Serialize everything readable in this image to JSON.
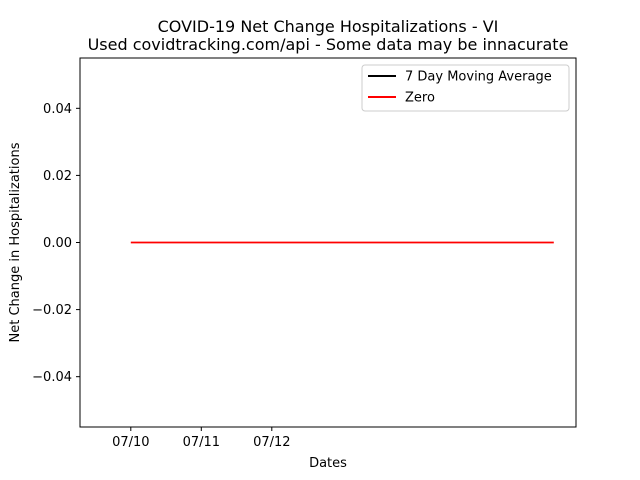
{
  "chart_data": {
    "type": "line",
    "title": "COVID-19 Net Change Hospitalizations - VI",
    "subtitle": "Used covidtracking.com/api - Some data may be innacurate",
    "xlabel": "Dates",
    "ylabel": "Net Change in Hospitalizations",
    "x_ticks": [
      "07/10",
      "07/11",
      "07/12"
    ],
    "y_ticks": [
      "0.04",
      "0.02",
      "0.00",
      "−0.02",
      "−0.04"
    ],
    "ylim": [
      -0.055,
      0.055
    ],
    "grid": false,
    "legend_position": "top-right",
    "series": [
      {
        "name": "7 Day Moving Average",
        "color": "#000000",
        "x": [],
        "values": []
      },
      {
        "name": "Zero",
        "color": "#ff0000",
        "x": [
          "07/10",
          "07/11",
          "07/12",
          "07/13",
          "07/14",
          "07/15",
          "07/16"
        ],
        "values": [
          0,
          0,
          0,
          0,
          0,
          0,
          0
        ]
      }
    ]
  }
}
